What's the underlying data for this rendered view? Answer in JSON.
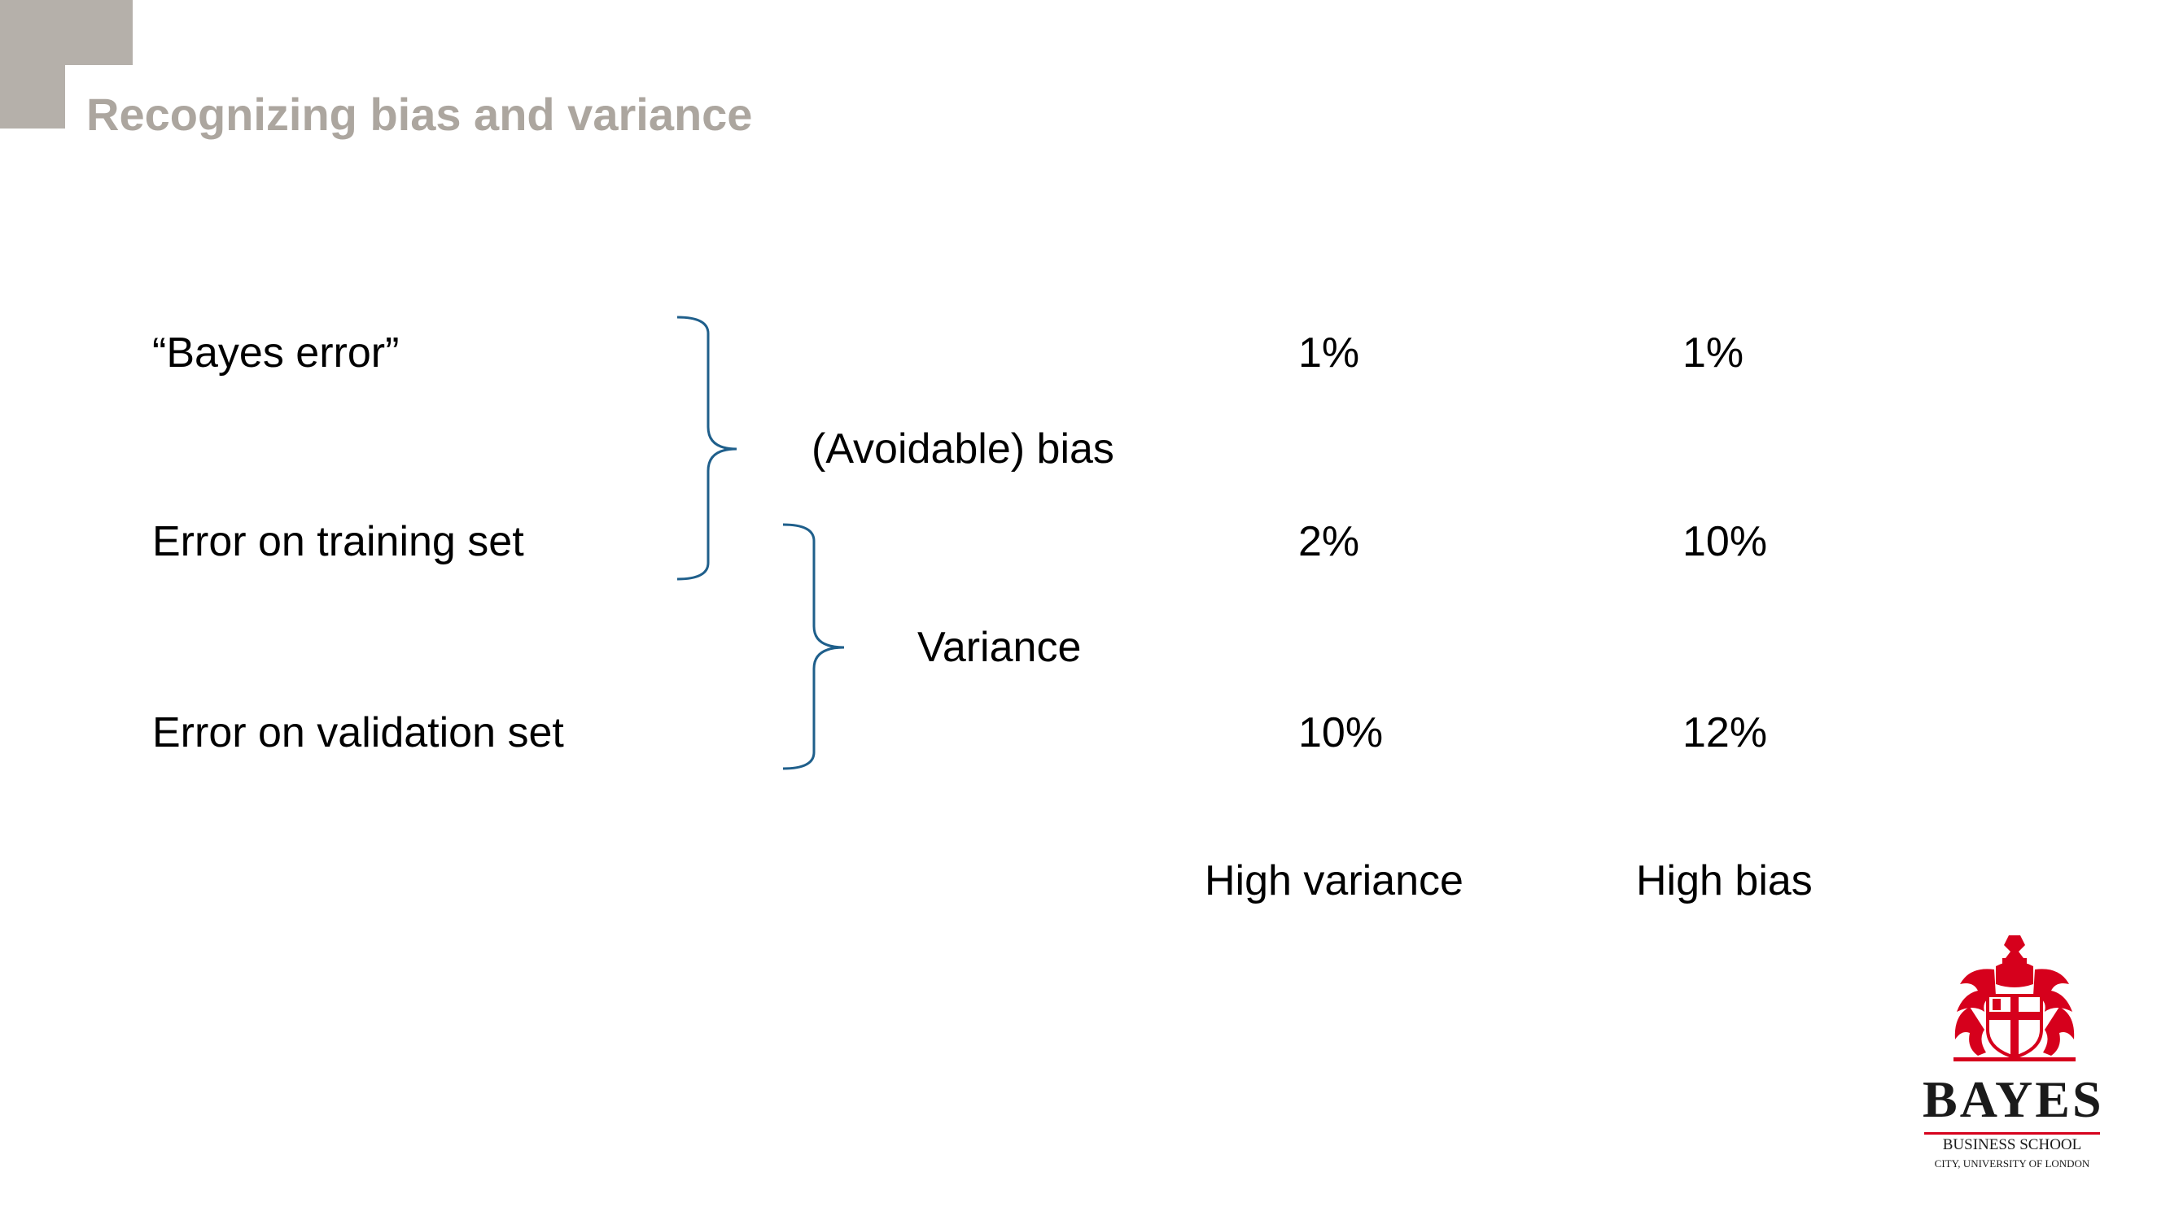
{
  "slide": {
    "title": "Recognizing bias and variance"
  },
  "rows": [
    {
      "label": "“Bayes error”",
      "example1": "1%",
      "example2": "1%"
    },
    {
      "label": "Error on training set",
      "example1": "2%",
      "example2": "10%"
    },
    {
      "label": "Error on validation set",
      "example1": "10%",
      "example2": "12%"
    }
  ],
  "gaps": {
    "bias": "(Avoidable) bias",
    "variance": "Variance"
  },
  "diagnosis": {
    "example1": "High variance",
    "example2": "High bias"
  },
  "logo": {
    "name": "BAYES",
    "subtitle": "BUSINESS SCHOOL",
    "affiliation": "CITY, UNIVERSITY OF LONDON"
  },
  "colors": {
    "title": "#aca69f",
    "corner": "#b5b0aa",
    "brace": "#1f5f8b",
    "logo_red": "#d6001c"
  }
}
